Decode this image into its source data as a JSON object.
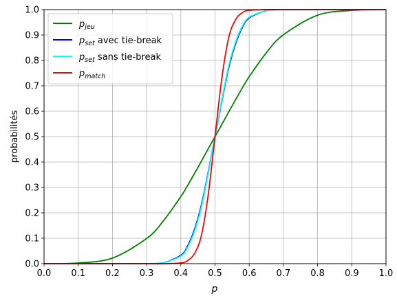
{
  "chart_data": {
    "type": "line",
    "xlabel": "p",
    "ylabel": "probabilités",
    "xlim": [
      0.0,
      1.0
    ],
    "ylim": [
      0.0,
      1.0
    ],
    "x_ticks": [
      "0.0",
      "0.1",
      "0.2",
      "0.3",
      "0.4",
      "0.5",
      "0.6",
      "0.7",
      "0.8",
      "0.9",
      "1.0"
    ],
    "y_ticks": [
      "0.0",
      "0.1",
      "0.2",
      "0.3",
      "0.4",
      "0.5",
      "0.6",
      "0.7",
      "0.8",
      "0.9",
      "1.0"
    ],
    "grid": true,
    "legend_position": "top-left",
    "x": [
      0.0,
      0.1,
      0.2,
      0.3,
      0.35,
      0.4,
      0.42,
      0.44,
      0.46,
      0.48,
      0.5,
      0.52,
      0.54,
      0.56,
      0.58,
      0.6,
      0.65,
      0.7,
      0.8,
      0.9,
      1.0
    ],
    "series": [
      {
        "label_main": "p",
        "label_sub": "jeu",
        "label_rest": "",
        "color": "#008000",
        "values": [
          0.0,
          0.0027,
          0.022,
          0.099,
          0.17,
          0.264,
          0.308,
          0.355,
          0.403,
          0.452,
          0.5,
          0.548,
          0.597,
          0.645,
          0.692,
          0.736,
          0.83,
          0.901,
          0.978,
          0.997,
          1.0
        ]
      },
      {
        "label_main": "p",
        "label_sub": "set",
        "label_rest": " avec tie-break",
        "color": "#0000ff",
        "values": [
          0.0,
          0.0,
          0.0,
          0.0,
          0.004,
          0.033,
          0.07,
          0.135,
          0.23,
          0.36,
          0.5,
          0.64,
          0.77,
          0.865,
          0.93,
          0.967,
          0.996,
          1.0,
          1.0,
          1.0,
          1.0
        ]
      },
      {
        "label_main": "p",
        "label_sub": "set",
        "label_rest": " sans tie-break",
        "color": "#00ffff",
        "values": [
          0.0,
          0.0,
          0.0,
          0.0,
          0.004,
          0.03,
          0.065,
          0.128,
          0.222,
          0.355,
          0.5,
          0.645,
          0.778,
          0.872,
          0.935,
          0.97,
          0.996,
          1.0,
          1.0,
          1.0,
          1.0
        ]
      },
      {
        "label_main": "p",
        "label_sub": "match",
        "label_rest": "",
        "color": "#ff0000",
        "values": [
          0.0,
          0.0,
          0.0,
          0.0,
          0.0,
          0.003,
          0.012,
          0.04,
          0.11,
          0.27,
          0.5,
          0.73,
          0.89,
          0.96,
          0.988,
          0.997,
          1.0,
          1.0,
          1.0,
          1.0,
          1.0
        ]
      }
    ]
  }
}
